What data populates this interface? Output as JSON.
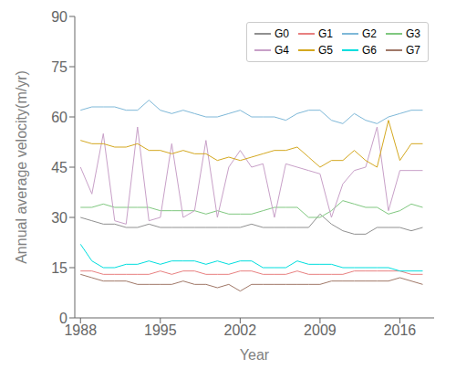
{
  "chart_data": {
    "type": "line",
    "xlabel": "Year",
    "ylabel": "Annual average velocity(m/yr)",
    "x": [
      1988,
      1989,
      1990,
      1991,
      1992,
      1993,
      1994,
      1995,
      1996,
      1997,
      1998,
      1999,
      2000,
      2001,
      2002,
      2003,
      2004,
      2005,
      2006,
      2007,
      2008,
      2009,
      2010,
      2011,
      2012,
      2013,
      2014,
      2015,
      2016,
      2017,
      2018
    ],
    "series": [
      {
        "name": "G0",
        "color": "#909090",
        "values": [
          30,
          29,
          28,
          28,
          27,
          27,
          28,
          27,
          27,
          27,
          27,
          27,
          27,
          27,
          27,
          28,
          27,
          27,
          27,
          27,
          27,
          31,
          28,
          26,
          25,
          25,
          27,
          27,
          27,
          26,
          27
        ]
      },
      {
        "name": "G1",
        "color": "#e88080",
        "values": [
          14,
          14,
          13,
          13,
          13,
          13,
          13,
          14,
          13,
          14,
          14,
          13,
          13,
          13,
          14,
          14,
          13,
          13,
          13,
          14,
          13,
          13,
          13,
          13,
          14,
          14,
          14,
          14,
          14,
          13,
          13
        ]
      },
      {
        "name": "G2",
        "color": "#7EB8D8",
        "values": [
          62,
          63,
          63,
          63,
          62,
          62,
          65,
          62,
          61,
          62,
          61,
          60,
          60,
          61,
          62,
          60,
          60,
          60,
          59,
          61,
          62,
          62,
          59,
          58,
          61,
          59,
          58,
          60,
          61,
          62,
          62
        ]
      },
      {
        "name": "G3",
        "color": "#80C880",
        "values": [
          33,
          33,
          34,
          33,
          33,
          33,
          33,
          32,
          32,
          32,
          32,
          31,
          32,
          31,
          31,
          31,
          32,
          33,
          33,
          33,
          30,
          30,
          32,
          35,
          34,
          33,
          33,
          31,
          32,
          34,
          33
        ]
      },
      {
        "name": "G4",
        "color": "#C8A0C8",
        "values": [
          45,
          37,
          55,
          29,
          28,
          57,
          29,
          30,
          52,
          30,
          32,
          53,
          30,
          45,
          50,
          45,
          46,
          30,
          46,
          45,
          44,
          43,
          30,
          40,
          44,
          45,
          57,
          32,
          44,
          44,
          44
        ]
      },
      {
        "name": "G5",
        "color": "#D4A820",
        "values": [
          53,
          52,
          52,
          51,
          51,
          52,
          50,
          50,
          49,
          50,
          49,
          49,
          47,
          48,
          47,
          48,
          49,
          50,
          50,
          51,
          48,
          45,
          47,
          47,
          50,
          47,
          45,
          59,
          47,
          52,
          52
        ]
      },
      {
        "name": "G6",
        "color": "#00DEDE",
        "values": [
          22,
          17,
          15,
          15,
          16,
          16,
          17,
          16,
          17,
          17,
          17,
          16,
          17,
          16,
          17,
          17,
          15,
          15,
          15,
          17,
          16,
          16,
          16,
          15,
          15,
          15,
          15,
          15,
          14,
          14,
          14
        ]
      },
      {
        "name": "G7",
        "color": "#A07868",
        "values": [
          13,
          12,
          11,
          11,
          11,
          10,
          10,
          10,
          10,
          11,
          10,
          10,
          9,
          10,
          8,
          10,
          10,
          10,
          10,
          10,
          10,
          10,
          11,
          11,
          11,
          11,
          11,
          11,
          12,
          11,
          10
        ]
      }
    ],
    "xlim": [
      1987.5,
      2019
    ],
    "xticks": [
      1988,
      1995,
      2002,
      2009,
      2016
    ],
    "ylim": [
      0,
      90
    ],
    "yticks": [
      0,
      15,
      30,
      45,
      60,
      75,
      90
    ],
    "legend": "upper right",
    "grid": false
  }
}
